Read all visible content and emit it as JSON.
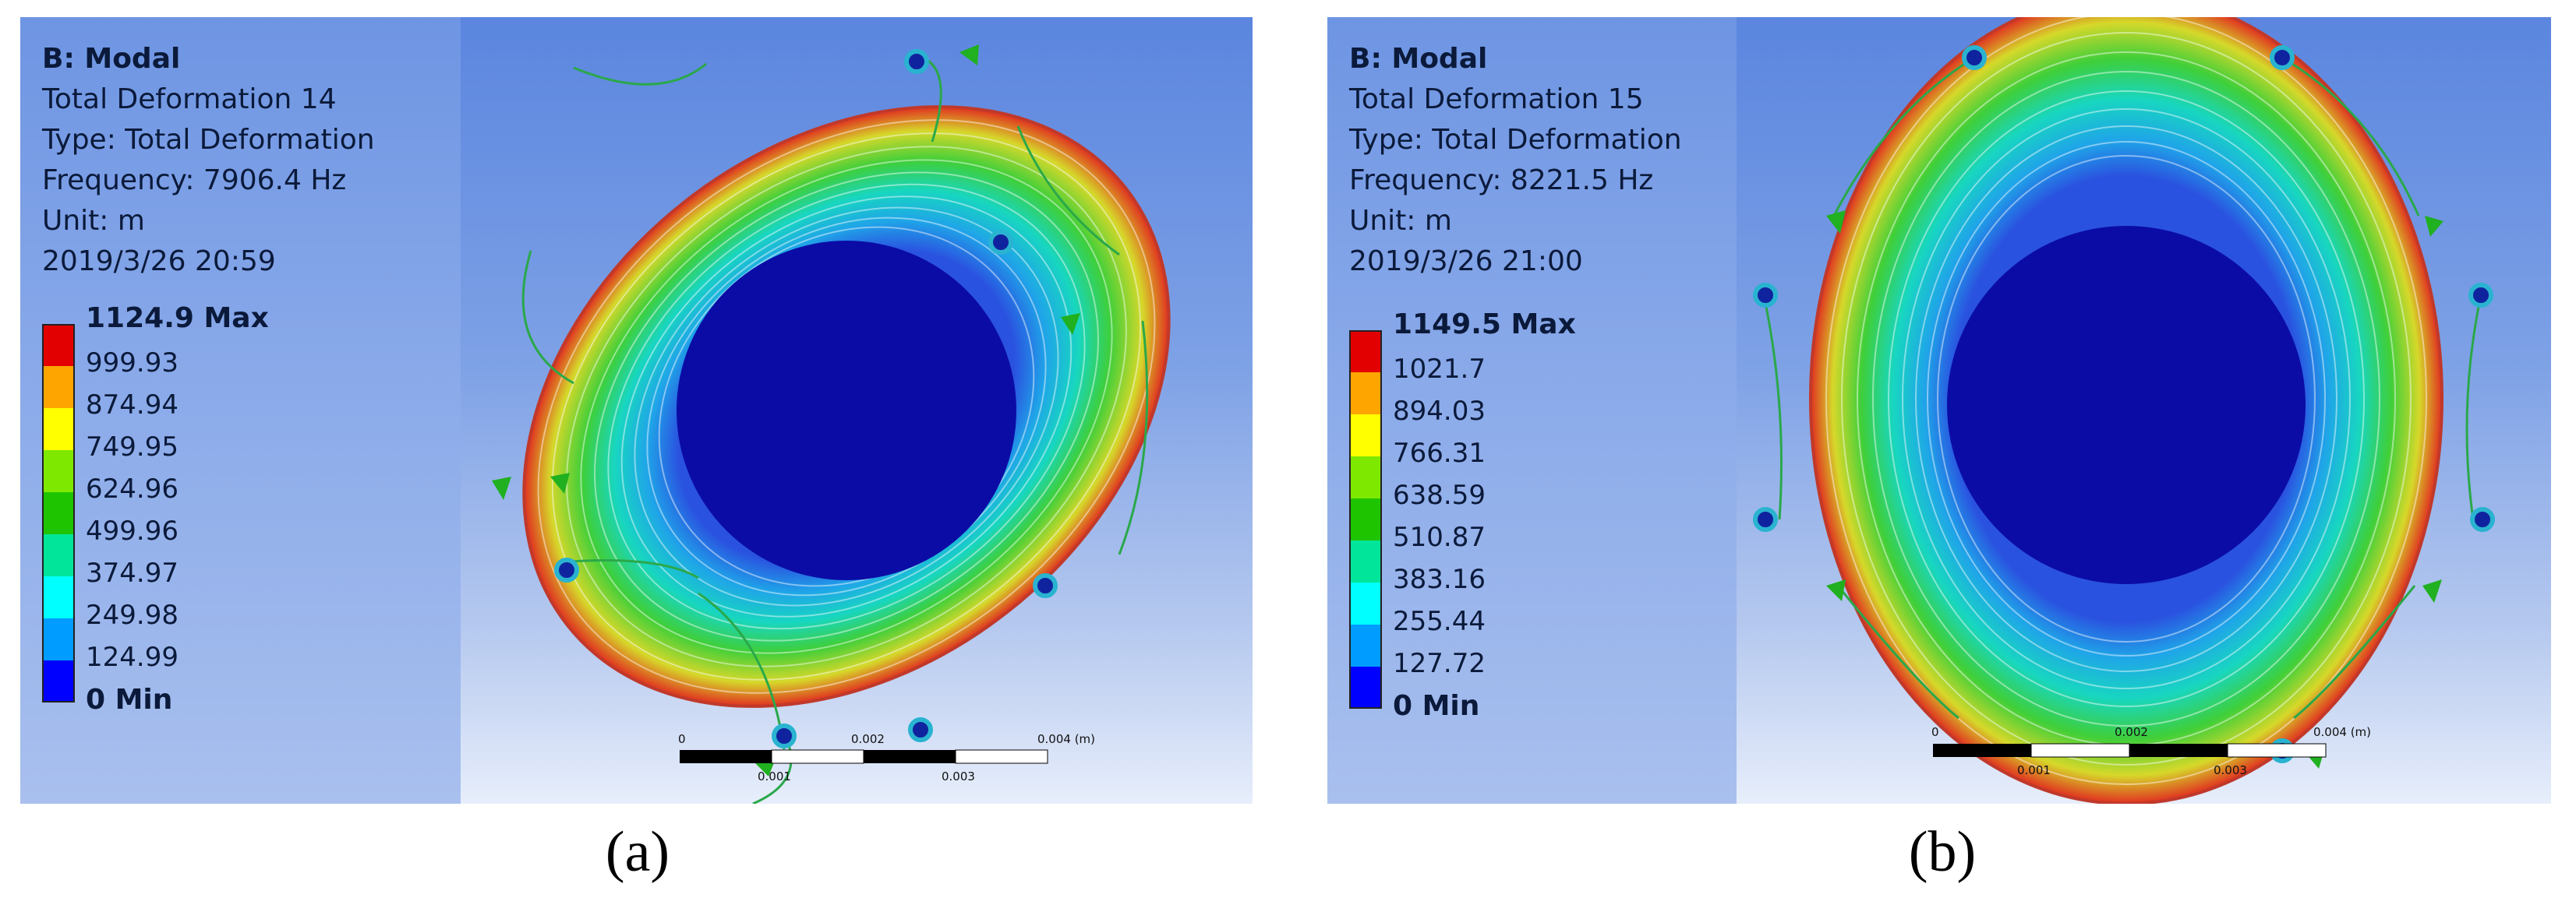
{
  "panels": [
    {
      "id": "a",
      "title": "B: Modal",
      "result_name": "Total Deformation 14",
      "type_line": "Type: Total Deformation",
      "frequency_line": "Frequency: 7906.4 Hz",
      "unit_line": "Unit: m",
      "date_line": "2019/3/26 20:59",
      "legend": {
        "max_label": "1124.9 Max",
        "ticks": [
          "999.93",
          "874.94",
          "749.95",
          "624.96",
          "499.96",
          "374.97",
          "249.98",
          "124.99"
        ],
        "min_label": "0 Min",
        "colors": [
          "#e30000",
          "#ffa500",
          "#ffff00",
          "#7fe800",
          "#1fc400",
          "#00e59a",
          "#00ffff",
          "#009cff",
          "#0000ff"
        ]
      },
      "scale_bar": {
        "top_labels": [
          "0",
          "0.002",
          "0.004 (m)"
        ],
        "bottom_labels": [
          "0.001",
          "0.003"
        ]
      },
      "caption": "(a)"
    },
    {
      "id": "b",
      "title": "B: Modal",
      "result_name": "Total Deformation 15",
      "type_line": "Type: Total Deformation",
      "frequency_line": "Frequency: 8221.5 Hz",
      "unit_line": "Unit: m",
      "date_line": "2019/3/26 21:00",
      "legend": {
        "max_label": "1149.5 Max",
        "ticks": [
          "1021.7",
          "894.03",
          "766.31",
          "638.59",
          "510.87",
          "383.16",
          "255.44",
          "127.72"
        ],
        "min_label": "0 Min",
        "colors": [
          "#e30000",
          "#ffa500",
          "#ffff00",
          "#7fe800",
          "#1fc400",
          "#00e59a",
          "#00ffff",
          "#009cff",
          "#0000ff"
        ]
      },
      "scale_bar": {
        "top_labels": [
          "0",
          "0.002",
          "0.004 (m)"
        ],
        "bottom_labels": [
          "0.001",
          "0.003"
        ]
      },
      "caption": "(b)"
    }
  ]
}
